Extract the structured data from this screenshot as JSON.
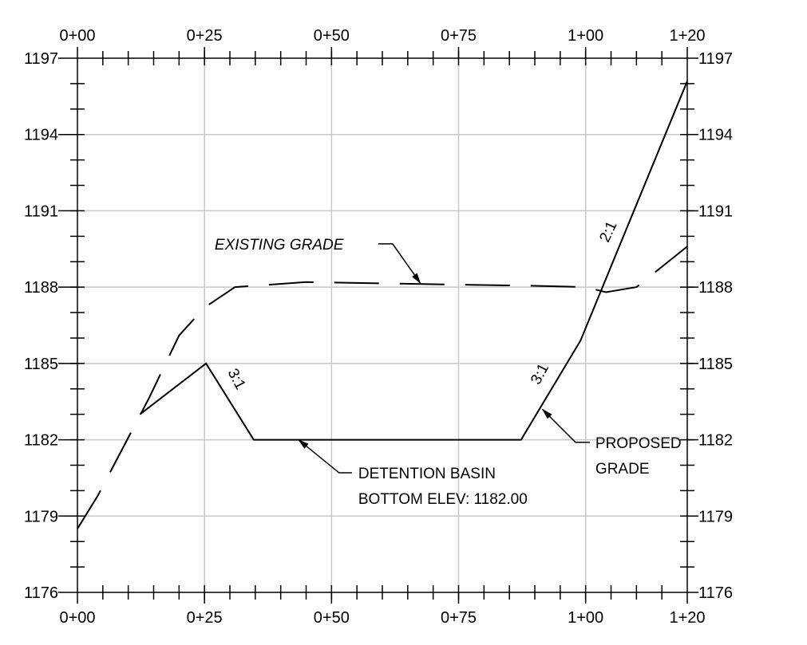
{
  "chart_data": {
    "type": "line",
    "x_unit": "station (ft)",
    "y_unit": "elevation (ft)",
    "xlim": [
      0,
      120
    ],
    "ylim": [
      1176,
      1197
    ],
    "x_ticks": [
      0,
      25,
      50,
      75,
      100,
      120
    ],
    "x_tick_labels": [
      "0+00",
      "0+25",
      "0+50",
      "0+75",
      "1+00",
      "1+20"
    ],
    "y_ticks": [
      1176,
      1179,
      1182,
      1185,
      1188,
      1191,
      1194,
      1197
    ],
    "y_tick_labels": [
      "1176",
      "1179",
      "1182",
      "1185",
      "1188",
      "1191",
      "1194",
      "1197"
    ],
    "minor_x_step": 5,
    "minor_y_step": 1,
    "grid": true,
    "series": [
      {
        "name": "EXISTING GRADE",
        "style": "dashed",
        "x": [
          0,
          4,
          9,
          14,
          20,
          25,
          31,
          45,
          60,
          75,
          90,
          100,
          104,
          110,
          115,
          120
        ],
        "y": [
          1178.5,
          1179.8,
          1181.7,
          1183.6,
          1186.1,
          1187.2,
          1188.0,
          1188.2,
          1188.15,
          1188.1,
          1188.05,
          1188.0,
          1187.8,
          1188.0,
          1188.8,
          1189.6
        ]
      },
      {
        "name": "PROPOSED GRADE",
        "style": "solid",
        "x": [
          12.3,
          25.3,
          34.7,
          87.3,
          99,
          120
        ],
        "y": [
          1183.0,
          1185.0,
          1182.0,
          1182.0,
          1185.9,
          1196.1
        ]
      }
    ],
    "annotations": {
      "existing_grade": {
        "label": "EXISTING GRADE",
        "label_at": [
          27,
          1189.7
        ],
        "arrow_to": [
          67.5,
          1188.15
        ]
      },
      "slope_left": {
        "text": "3:1",
        "at": [
          30.5,
          1184.3
        ],
        "angle": 62
      },
      "slope_right": {
        "text": "3:1",
        "at": [
          91.8,
          1184.5
        ],
        "angle": -62
      },
      "slope_steep": {
        "text": "2:1",
        "at": [
          105.3,
          1190.1
        ],
        "angle": -65
      },
      "proposed_grade": {
        "line1": "PROPOSED",
        "line2": "GRADE",
        "text_at": [
          98,
          1181.9
        ],
        "arrow_to": [
          91.5,
          1183.2
        ]
      },
      "detention_basin": {
        "line1": "DETENTION BASIN",
        "line2": "BOTTOM ELEV: 1182.00",
        "text_at": [
          51.5,
          1180.7
        ],
        "arrow_to": [
          43.5,
          1182.0
        ]
      }
    }
  }
}
